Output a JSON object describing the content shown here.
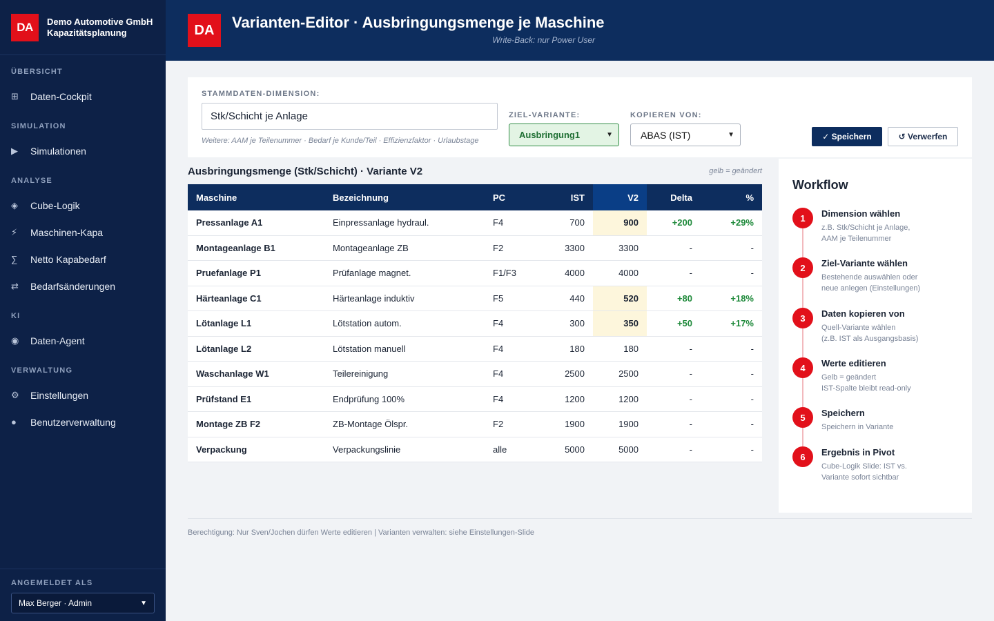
{
  "sidebar": {
    "logo": "DA",
    "company": "Demo Automotive GmbH",
    "app": "Kapazitätsplanung",
    "sections": [
      {
        "title": "ÜBERSICHT",
        "items": [
          {
            "icon": "⊞",
            "label": "Daten-Cockpit"
          }
        ]
      },
      {
        "title": "SIMULATION",
        "items": [
          {
            "icon": "▶",
            "label": "Simulationen"
          }
        ]
      },
      {
        "title": "ANALYSE",
        "items": [
          {
            "icon": "◈",
            "label": "Cube-Logik"
          },
          {
            "icon": "⚡",
            "label": "Maschinen-Kapa"
          },
          {
            "icon": "∑",
            "label": "Netto Kapabedarf"
          },
          {
            "icon": "⇄",
            "label": "Bedarfsänderungen"
          }
        ]
      },
      {
        "title": "KI",
        "items": [
          {
            "icon": "◉",
            "label": "Daten-Agent"
          }
        ]
      },
      {
        "title": "VERWALTUNG",
        "items": [
          {
            "icon": "⚙",
            "label": "Einstellungen"
          },
          {
            "icon": "●",
            "label": "Benutzerverwaltung"
          }
        ]
      }
    ],
    "footer_label": "ANGEMELDET ALS",
    "user": "Max Berger · Admin"
  },
  "header": {
    "logo": "DA",
    "title": "Varianten-Editor · Ausbringungsmenge je Maschine",
    "subtitle": "Write-Back: nur Power User"
  },
  "controls": {
    "dimension_label": "STAMMDATEN-DIMENSION:",
    "dimension_value": "Stk/Schicht je Anlage",
    "dimension_hint": "Weitere: AAM je Teilenummer · Bedarf je Kunde/Teil · Effizienzfaktor · Urlaubstage",
    "target_label": "ZIEL-VARIANTE:",
    "target_value": "Ausbringung1",
    "copy_label": "KOPIEREN VON:",
    "copy_value": "ABAS (IST)",
    "save": "✓ Speichern",
    "discard": "↺ Verwerfen"
  },
  "table": {
    "title": "Ausbringungsmenge (Stk/Schicht) · Variante V2",
    "hint": "gelb = geändert",
    "columns": [
      "Maschine",
      "Bezeichnung",
      "PC",
      "IST",
      "V2",
      "Delta",
      "%"
    ],
    "rows": [
      {
        "m": "Pressanlage A1",
        "b": "Einpressanlage hydraul.",
        "pc": "F4",
        "ist": "700",
        "v2": "900",
        "d": "+200",
        "p": "+29%",
        "changed": true
      },
      {
        "m": "Montageanlage B1",
        "b": "Montageanlage ZB",
        "pc": "F2",
        "ist": "3300",
        "v2": "3300",
        "d": "-",
        "p": "-",
        "changed": false
      },
      {
        "m": "Pruefanlage P1",
        "b": "Prüfanlage magnet.",
        "pc": "F1/F3",
        "ist": "4000",
        "v2": "4000",
        "d": "-",
        "p": "-",
        "changed": false
      },
      {
        "m": "Härteanlage C1",
        "b": "Härteanlage induktiv",
        "pc": "F5",
        "ist": "440",
        "v2": "520",
        "d": "+80",
        "p": "+18%",
        "changed": true
      },
      {
        "m": "Lötanlage L1",
        "b": "Lötstation autom.",
        "pc": "F4",
        "ist": "300",
        "v2": "350",
        "d": "+50",
        "p": "+17%",
        "changed": true
      },
      {
        "m": "Lötanlage L2",
        "b": "Lötstation manuell",
        "pc": "F4",
        "ist": "180",
        "v2": "180",
        "d": "-",
        "p": "-",
        "changed": false
      },
      {
        "m": "Waschanlage W1",
        "b": "Teilereinigung",
        "pc": "F4",
        "ist": "2500",
        "v2": "2500",
        "d": "-",
        "p": "-",
        "changed": false
      },
      {
        "m": "Prüfstand E1",
        "b": "Endprüfung 100%",
        "pc": "F4",
        "ist": "1200",
        "v2": "1200",
        "d": "-",
        "p": "-",
        "changed": false
      },
      {
        "m": "Montage ZB F2",
        "b": "ZB-Montage Ölspr.",
        "pc": "F2",
        "ist": "1900",
        "v2": "1900",
        "d": "-",
        "p": "-",
        "changed": false
      },
      {
        "m": "Verpackung",
        "b": "Verpackungslinie",
        "pc": "alle",
        "ist": "5000",
        "v2": "5000",
        "d": "-",
        "p": "-",
        "changed": false
      }
    ]
  },
  "workflow": {
    "title": "Workflow",
    "steps": [
      {
        "n": "1",
        "title": "Dimension wählen",
        "desc1": "z.B. Stk/Schicht je Anlage,",
        "desc2": "AAM je Teilenummer"
      },
      {
        "n": "2",
        "title": "Ziel-Variante wählen",
        "desc1": "Bestehende auswählen oder",
        "desc2": "neue anlegen (Einstellungen)"
      },
      {
        "n": "3",
        "title": "Daten kopieren von",
        "desc1": "Quell-Variante wählen",
        "desc2": "(z.B. IST als Ausgangsbasis)"
      },
      {
        "n": "4",
        "title": "Werte editieren",
        "desc1": "Gelb = geändert",
        "desc2": "IST-Spalte bleibt read-only"
      },
      {
        "n": "5",
        "title": "Speichern",
        "desc1": "Speichern in Variante",
        "desc2": ""
      },
      {
        "n": "6",
        "title": "Ergebnis in Pivot",
        "desc1": "Cube-Logik Slide: IST vs.",
        "desc2": "Variante sofort sichtbar"
      }
    ]
  },
  "footnote": "Berechtigung: Nur Sven/Jochen dürfen Werte editieren | Varianten verwalten: siehe Einstellungen-Slide"
}
